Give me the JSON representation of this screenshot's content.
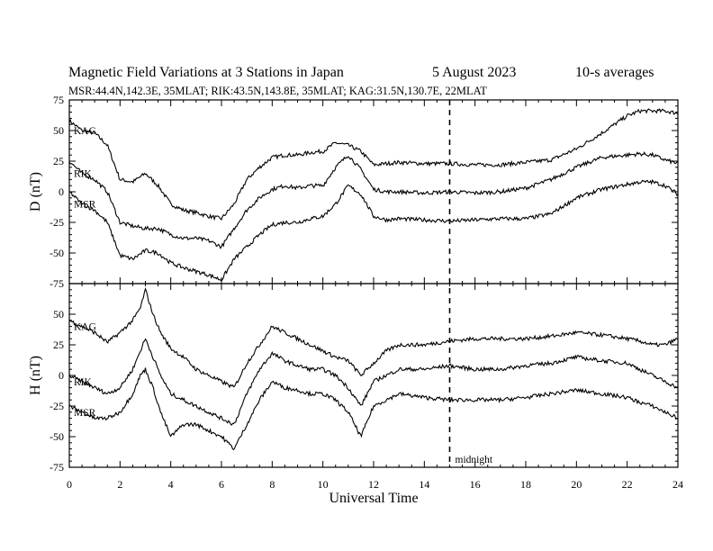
{
  "title": {
    "main": "Magnetic Field Variations at 3 Stations in Japan",
    "date": "5   August   2023",
    "averaging": "10-s averages"
  },
  "subtitle": "MSR:44.4N,142.3E, 35MLAT;   RIK:43.5N,143.8E, 35MLAT;   KAG:31.5N,130.7E, 22MLAT",
  "colors": {
    "line": "#000000",
    "background": "#ffffff"
  },
  "chart_data": [
    {
      "type": "line",
      "panel": "D",
      "ylabel": "D (nT)",
      "xlabel": "",
      "xlim": [
        0,
        24
      ],
      "ylim": [
        -75,
        75
      ],
      "yticks": [
        75,
        50,
        25,
        0,
        -25,
        -50,
        -75
      ],
      "grid": false,
      "series": [
        {
          "name": "KAG",
          "x": [
            0,
            0.5,
            1,
            1.5,
            2,
            2.5,
            3,
            3.5,
            4,
            4.5,
            5,
            5.5,
            6,
            6.5,
            7,
            7.5,
            8,
            8.5,
            9,
            9.5,
            10,
            10.5,
            11,
            11.5,
            12,
            12.5,
            13,
            14,
            15,
            16,
            17,
            18,
            19,
            20,
            21,
            22,
            22.5,
            23,
            23.5,
            24
          ],
          "y": [
            58,
            50,
            48,
            38,
            10,
            8,
            15,
            5,
            -10,
            -15,
            -17,
            -20,
            -22,
            -10,
            10,
            20,
            28,
            30,
            30,
            32,
            33,
            40,
            38,
            33,
            22,
            23,
            24,
            23,
            23,
            22,
            22,
            24,
            26,
            35,
            48,
            62,
            66,
            66,
            66,
            64
          ]
        },
        {
          "name": "RIK",
          "x": [
            0,
            0.5,
            1,
            1.5,
            2,
            2.5,
            3,
            3.5,
            4,
            4.5,
            5,
            5.5,
            6,
            6.5,
            7,
            7.5,
            8,
            8.5,
            9,
            9.5,
            10,
            10.5,
            11,
            11.5,
            12,
            12.5,
            13,
            14,
            15,
            16,
            17,
            18,
            19,
            20,
            21,
            22,
            22.5,
            23,
            23.5,
            24
          ],
          "y": [
            25,
            15,
            10,
            0,
            -25,
            -28,
            -30,
            -30,
            -35,
            -38,
            -38,
            -40,
            -45,
            -30,
            -15,
            -5,
            2,
            5,
            3,
            5,
            5,
            20,
            30,
            18,
            2,
            0,
            0,
            -1,
            0,
            -1,
            0,
            3,
            10,
            20,
            28,
            30,
            31,
            30,
            26,
            23
          ]
        },
        {
          "name": "MSR",
          "x": [
            0,
            0.5,
            1,
            1.5,
            2,
            2.5,
            3,
            3.5,
            4,
            4.5,
            5,
            5.5,
            6,
            6.5,
            7,
            7.5,
            8,
            8.5,
            9,
            9.5,
            10,
            10.5,
            11,
            11.5,
            12,
            12.5,
            13,
            14,
            15,
            16,
            17,
            18,
            19,
            20,
            21,
            22,
            22.5,
            23,
            23.5,
            24
          ],
          "y": [
            0,
            -10,
            -15,
            -25,
            -52,
            -55,
            -48,
            -50,
            -58,
            -62,
            -65,
            -68,
            -72,
            -55,
            -45,
            -35,
            -27,
            -25,
            -25,
            -22,
            -20,
            -10,
            5,
            -2,
            -20,
            -23,
            -22,
            -23,
            -24,
            -23,
            -22,
            -22,
            -18,
            -5,
            2,
            6,
            8,
            8,
            5,
            -2
          ]
        }
      ]
    },
    {
      "type": "line",
      "panel": "H",
      "ylabel": "H (nT)",
      "xlabel": "Universal Time",
      "xlim": [
        0,
        24
      ],
      "ylim": [
        -75,
        75
      ],
      "yticks": [
        50,
        25,
        0,
        -25,
        -50,
        -75
      ],
      "xticks": [
        0,
        2,
        4,
        6,
        8,
        10,
        12,
        14,
        16,
        18,
        20,
        22,
        24
      ],
      "grid": false,
      "series": [
        {
          "name": "KAG",
          "x": [
            0,
            0.5,
            1,
            1.5,
            2,
            2.5,
            2.8,
            3,
            3.3,
            3.6,
            4,
            4.5,
            5,
            5.5,
            6,
            6.5,
            7,
            7.5,
            8,
            8.5,
            9,
            9.5,
            10,
            10.5,
            11,
            11.5,
            12,
            12.5,
            13,
            14,
            15,
            16,
            17,
            18,
            19,
            20,
            21,
            22,
            22.5,
            23,
            23.5,
            24
          ],
          "y": [
            45,
            40,
            35,
            27,
            35,
            45,
            55,
            70,
            50,
            35,
            22,
            15,
            5,
            0,
            -5,
            -10,
            10,
            25,
            40,
            35,
            30,
            25,
            20,
            15,
            12,
            0,
            10,
            20,
            25,
            25,
            28,
            30,
            30,
            30,
            32,
            35,
            33,
            30,
            28,
            25,
            25,
            30
          ]
        },
        {
          "name": "RIK",
          "x": [
            0,
            0.5,
            1,
            1.5,
            2,
            2.5,
            2.8,
            3,
            3.3,
            3.6,
            4,
            4.5,
            5,
            5.5,
            6,
            6.5,
            7,
            7.5,
            8,
            8.5,
            9,
            9.5,
            10,
            10.5,
            11,
            11.5,
            12,
            12.5,
            13,
            14,
            15,
            16,
            17,
            18,
            19,
            20,
            21,
            22,
            22.5,
            23,
            23.5,
            24
          ],
          "y": [
            0,
            -5,
            -10,
            -15,
            -10,
            5,
            20,
            30,
            15,
            0,
            -15,
            -20,
            -25,
            -30,
            -35,
            -40,
            -15,
            5,
            18,
            12,
            8,
            5,
            5,
            0,
            -10,
            -25,
            -5,
            0,
            5,
            5,
            8,
            5,
            5,
            8,
            10,
            15,
            12,
            10,
            5,
            0,
            -5,
            -10
          ]
        },
        {
          "name": "MSR",
          "x": [
            0,
            0.5,
            1,
            1.5,
            2,
            2.5,
            2.8,
            3,
            3.3,
            3.6,
            4,
            4.5,
            5,
            5.5,
            6,
            6.5,
            7,
            7.5,
            8,
            8.5,
            9,
            9.5,
            10,
            10.5,
            11,
            11.5,
            12,
            12.5,
            13,
            14,
            15,
            16,
            17,
            18,
            19,
            20,
            21,
            22,
            22.5,
            23,
            23.5,
            24
          ],
          "y": [
            -25,
            -30,
            -35,
            -35,
            -30,
            -15,
            0,
            5,
            -10,
            -30,
            -50,
            -40,
            -40,
            -45,
            -50,
            -60,
            -40,
            -20,
            -5,
            -10,
            -12,
            -15,
            -15,
            -20,
            -30,
            -50,
            -25,
            -20,
            -15,
            -18,
            -20,
            -20,
            -20,
            -18,
            -15,
            -12,
            -15,
            -18,
            -22,
            -25,
            -30,
            -35
          ]
        }
      ]
    }
  ],
  "xticks": [
    0,
    2,
    4,
    6,
    8,
    10,
    12,
    14,
    16,
    18,
    20,
    22,
    24
  ],
  "annotation": {
    "label": "midnight",
    "x": 15
  }
}
